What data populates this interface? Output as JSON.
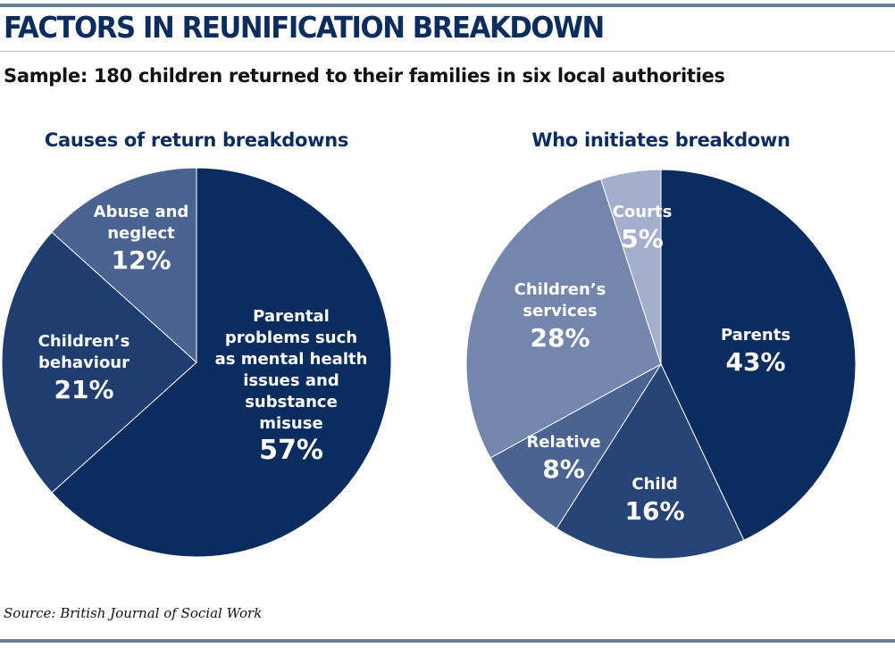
{
  "title": "FACTORS IN REUNIFICATION BREAKDOWN",
  "subtitle": "Sample: 180 children returned to their families in six local authorities",
  "source": "Source: British Journal of Social Work",
  "chart_data": [
    {
      "type": "pie",
      "title": "Causes of return breakdowns",
      "slices": [
        {
          "label_lines": [
            "Parental",
            "problems such",
            "as mental health",
            "issues and",
            "substance",
            "misuse"
          ],
          "pct_label": "57%",
          "value": 57,
          "color": "#0b2c5e"
        },
        {
          "label_lines": [
            "Children’s",
            "behaviour"
          ],
          "pct_label": "21%",
          "value": 21,
          "color": "#1f3d6f"
        },
        {
          "label_lines": [
            "Abuse and",
            "neglect"
          ],
          "pct_label": "12%",
          "value": 12,
          "color": "#4a6390"
        }
      ]
    },
    {
      "type": "pie",
      "title": "Who initiates breakdown",
      "slices": [
        {
          "label_lines": [
            "Parents"
          ],
          "pct_label": "43%",
          "value": 43,
          "color": "#0b2c5e"
        },
        {
          "label_lines": [
            "Child"
          ],
          "pct_label": "16%",
          "value": 16,
          "color": "#274477"
        },
        {
          "label_lines": [
            "Relative"
          ],
          "pct_label": "8%",
          "value": 8,
          "color": "#4a6390"
        },
        {
          "label_lines": [
            "Children’s",
            "services"
          ],
          "pct_label": "28%",
          "value": 28,
          "color": "#7486ac"
        },
        {
          "label_lines": [
            "Courts"
          ],
          "pct_label": "5%",
          "value": 5,
          "color": "#a4b0cb"
        }
      ]
    }
  ]
}
